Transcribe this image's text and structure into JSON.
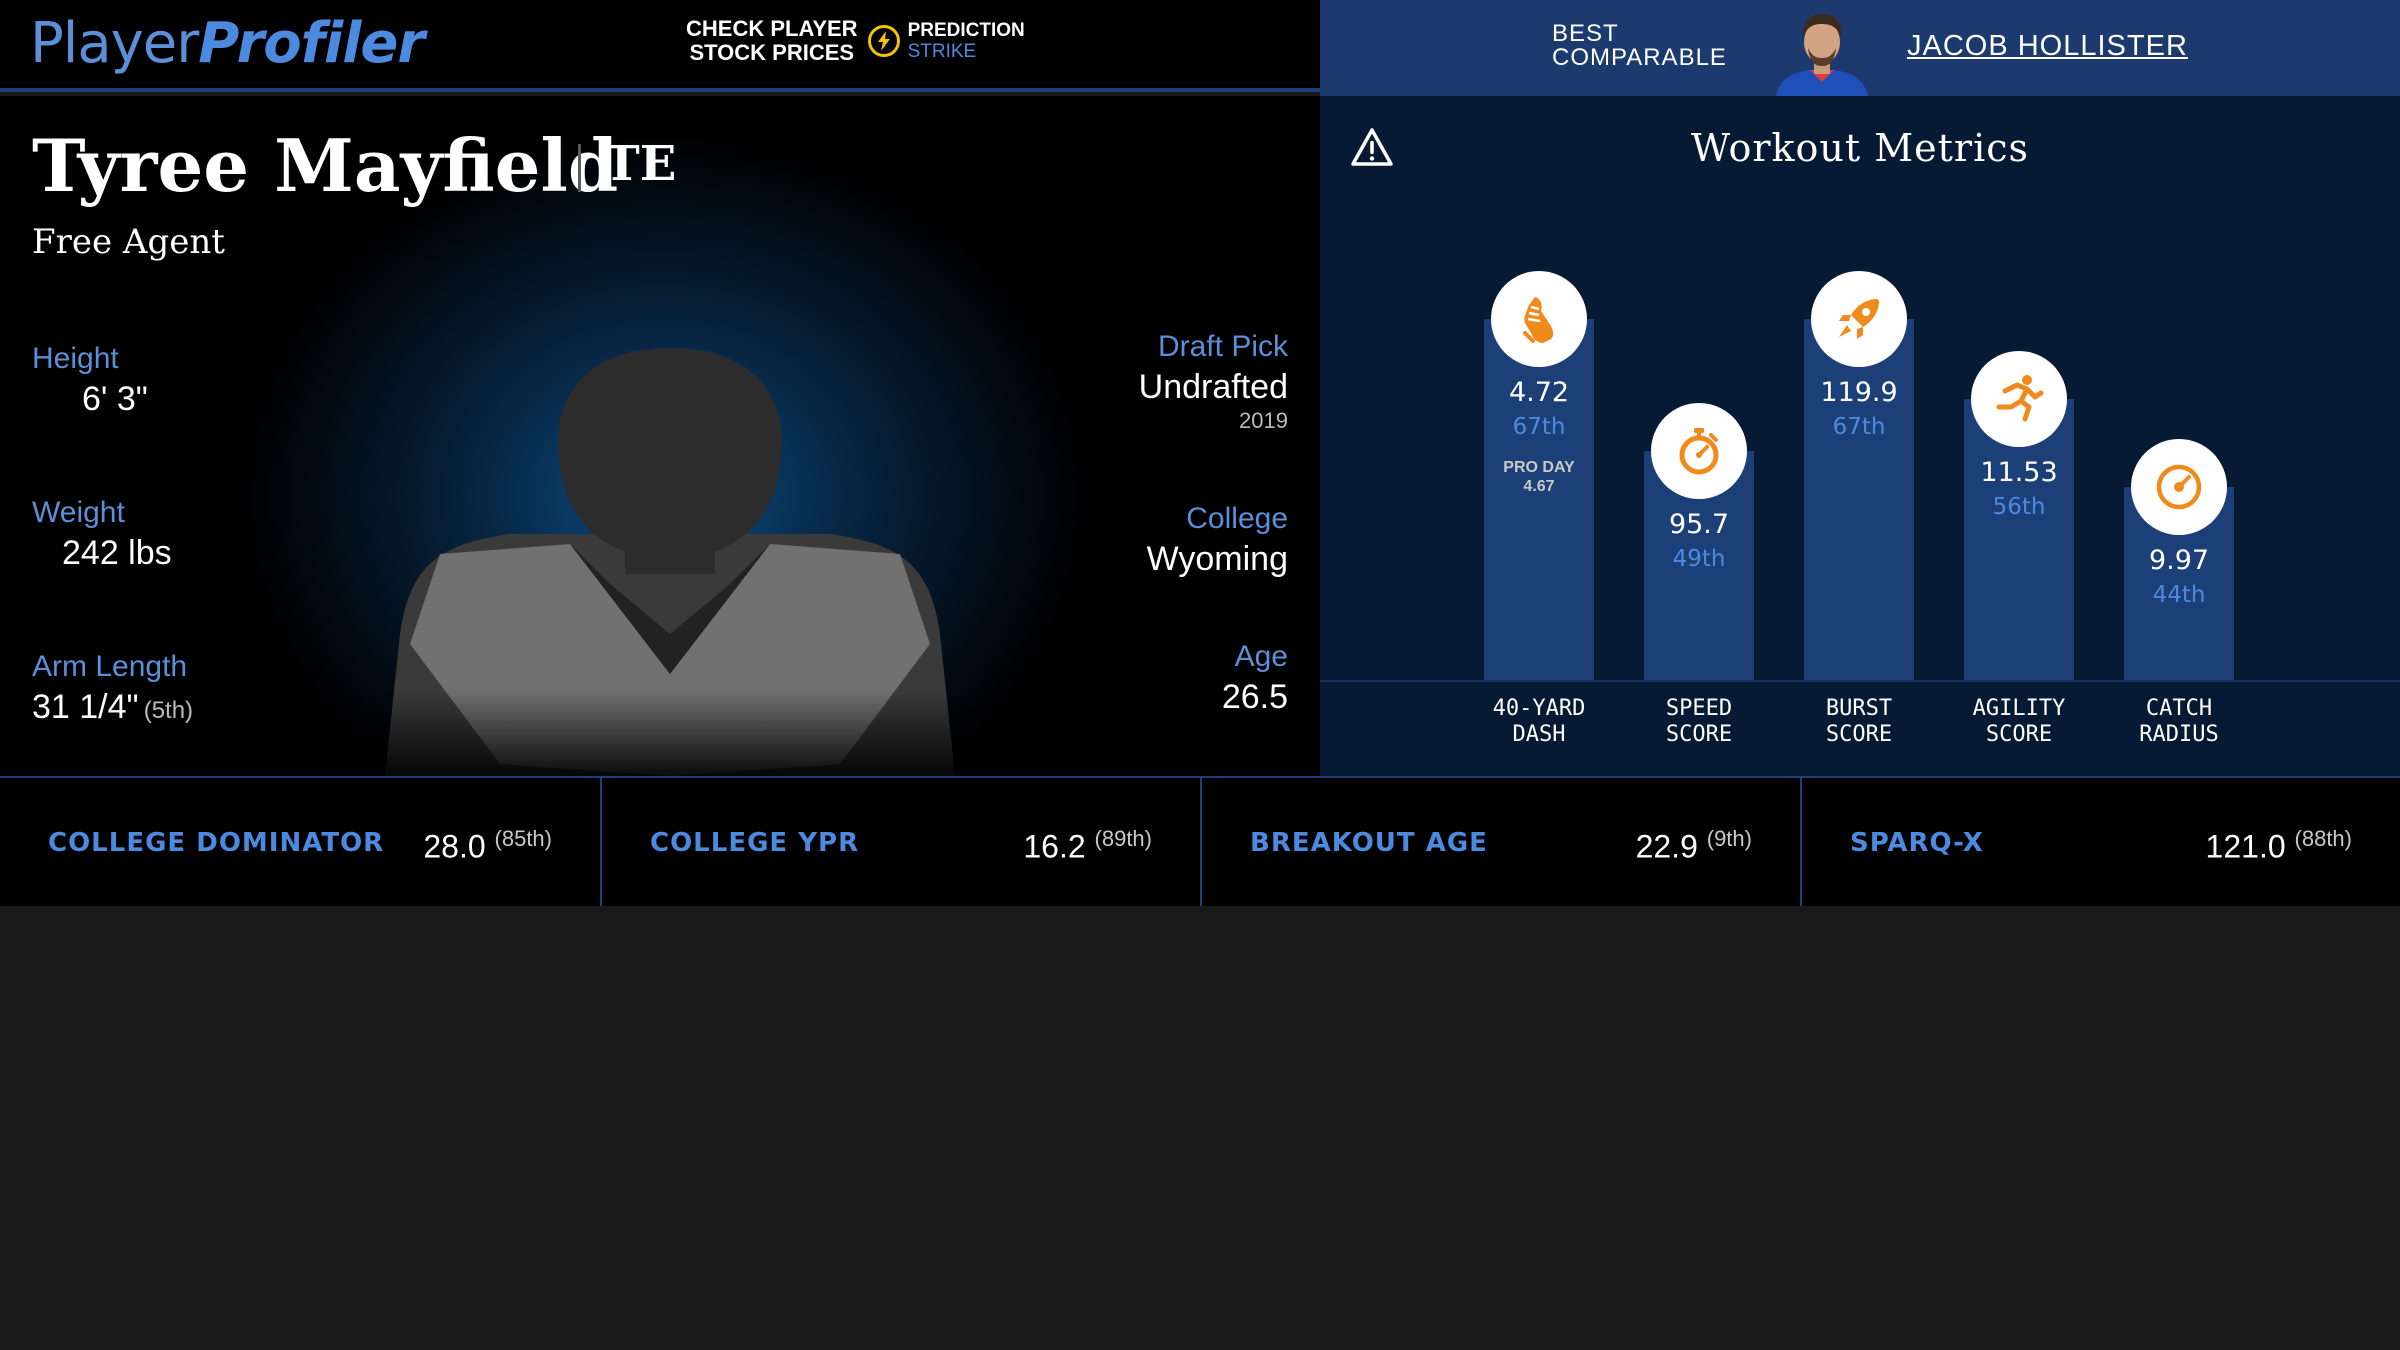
{
  "header": {
    "logo_part1": "Player",
    "logo_part2": "Profiler",
    "promo_line1": "CHECK PLAYER",
    "promo_line2": "STOCK PRICES",
    "promo_brand1": "PREDICTION",
    "promo_brand2": "STRIKE",
    "promo_icon": "lightning-bolt-icon",
    "comparable_label_line1": "BEST",
    "comparable_label_line2": "COMPARABLE",
    "comparable_name": "JACOB HOLLISTER"
  },
  "player": {
    "name": "Tyree Mayfield",
    "position": "TE",
    "team": "Free Agent",
    "height_label": "Height",
    "height": "6' 3\"",
    "weight_label": "Weight",
    "weight": "242 lbs",
    "arm_label": "Arm Length",
    "arm_length": "31 1/4\"",
    "arm_rank": "(5th)",
    "draft_label": "Draft Pick",
    "draft": "Undrafted",
    "draft_year": "2019",
    "college_label": "College",
    "college": "Wyoming",
    "age_label": "Age",
    "age": "26.5"
  },
  "metrics": {
    "title": "Workout Metrics",
    "icon": "warning-triangle-icon",
    "items": [
      {
        "label1": "40-YARD",
        "label2": "DASH",
        "value": "4.72",
        "percentile": "67th",
        "note1": "PRO DAY",
        "note2": "4.67",
        "icon": "shoe-icon",
        "level": 0.67
      },
      {
        "label1": "SPEED",
        "label2": "SCORE",
        "value": "95.7",
        "percentile": "49th",
        "icon": "stopwatch-icon",
        "level": 0.49
      },
      {
        "label1": "BURST",
        "label2": "SCORE",
        "value": "119.9",
        "percentile": "67th",
        "icon": "rocket-icon",
        "level": 0.67
      },
      {
        "label1": "AGILITY",
        "label2": "SCORE",
        "value": "11.53",
        "percentile": "56th",
        "icon": "runner-icon",
        "level": 0.56
      },
      {
        "label1": "CATCH",
        "label2": "RADIUS",
        "value": "9.97",
        "percentile": "44th",
        "icon": "target-gauge-icon",
        "level": 0.44
      }
    ]
  },
  "footer": [
    {
      "label": "COLLEGE DOMINATOR",
      "value": "28.0",
      "rank": "(85th)"
    },
    {
      "label": "COLLEGE YPR",
      "value": "16.2",
      "rank": "(89th)"
    },
    {
      "label": "BREAKOUT AGE",
      "value": "22.9",
      "rank": "(9th)"
    },
    {
      "label": "SPARQ-X",
      "value": "121.0",
      "rank": "(88th)"
    }
  ],
  "colors": {
    "accent_blue": "#4c8ae0",
    "header_band": "#1d3a6e",
    "bar": "#1d3f78",
    "icon_orange": "#f08a1c"
  }
}
